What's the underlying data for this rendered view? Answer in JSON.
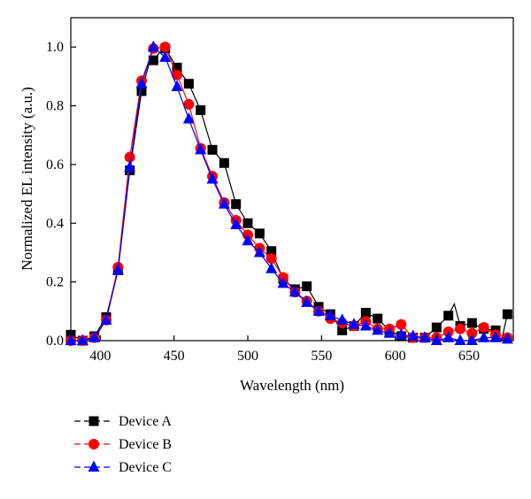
{
  "chart_data": {
    "type": "line",
    "xlabel": "Wavelength (nm)",
    "ylabel": "Normalized EL intensity (a.u.)",
    "xlim": [
      380,
      680
    ],
    "ylim": [
      0,
      1.1
    ],
    "x_ticks": [
      400,
      450,
      500,
      550,
      600,
      650
    ],
    "y_ticks": [
      0.0,
      0.2,
      0.4,
      0.6,
      0.8,
      1.0
    ],
    "x_tick_labels": [
      "400",
      "450",
      "500",
      "550",
      "600",
      "650"
    ],
    "y_tick_labels": [
      "0.0",
      "0.2",
      "0.4",
      "0.6",
      "0.8",
      "1.0"
    ],
    "grid": false,
    "legend_position": "below-left",
    "series": [
      {
        "name": "Device A",
        "color": "#000000",
        "marker": "square",
        "line": [
          [
            380,
            0.02
          ],
          [
            388,
            0.0
          ],
          [
            396,
            0.015
          ],
          [
            404,
            0.08
          ],
          [
            412,
            0.24
          ],
          [
            420,
            0.58
          ],
          [
            428,
            0.85
          ],
          [
            434,
            0.96
          ],
          [
            436,
            0.955
          ],
          [
            440,
            0.98
          ],
          [
            444,
            0.995
          ],
          [
            452,
            0.93
          ],
          [
            460,
            0.875
          ],
          [
            468,
            0.785
          ],
          [
            476,
            0.65
          ],
          [
            484,
            0.605
          ],
          [
            492,
            0.465
          ],
          [
            500,
            0.4
          ],
          [
            508,
            0.365
          ],
          [
            516,
            0.305
          ],
          [
            524,
            0.21
          ],
          [
            532,
            0.175
          ],
          [
            540,
            0.185
          ],
          [
            548,
            0.115
          ],
          [
            556,
            0.09
          ],
          [
            564,
            0.035
          ],
          [
            572,
            0.05
          ],
          [
            580,
            0.095
          ],
          [
            588,
            0.075
          ],
          [
            596,
            0.035
          ],
          [
            604,
            0.015
          ],
          [
            612,
            0.01
          ],
          [
            620,
            0.01
          ],
          [
            628,
            0.045
          ],
          [
            636,
            0.085
          ],
          [
            640,
            0.125
          ],
          [
            644,
            0.05
          ],
          [
            652,
            0.06
          ],
          [
            660,
            0.04
          ],
          [
            668,
            0.035
          ],
          [
            672,
            0.0
          ],
          [
            676,
            0.09
          ]
        ],
        "markers": [
          [
            380,
            0.02
          ],
          [
            388,
            0.0
          ],
          [
            396,
            0.015
          ],
          [
            404,
            0.08
          ],
          [
            412,
            0.24
          ],
          [
            420,
            0.58
          ],
          [
            428,
            0.85
          ],
          [
            436,
            0.955
          ],
          [
            444,
            0.995
          ],
          [
            452,
            0.93
          ],
          [
            460,
            0.875
          ],
          [
            468,
            0.785
          ],
          [
            476,
            0.65
          ],
          [
            484,
            0.605
          ],
          [
            492,
            0.465
          ],
          [
            500,
            0.4
          ],
          [
            508,
            0.365
          ],
          [
            516,
            0.305
          ],
          [
            524,
            0.21
          ],
          [
            532,
            0.175
          ],
          [
            540,
            0.185
          ],
          [
            548,
            0.115
          ],
          [
            556,
            0.09
          ],
          [
            564,
            0.035
          ],
          [
            572,
            0.05
          ],
          [
            580,
            0.095
          ],
          [
            588,
            0.075
          ],
          [
            596,
            0.035
          ],
          [
            604,
            0.015
          ],
          [
            612,
            0.01
          ],
          [
            620,
            0.01
          ],
          [
            628,
            0.045
          ],
          [
            636,
            0.085
          ],
          [
            644,
            0.05
          ],
          [
            652,
            0.06
          ],
          [
            660,
            0.04
          ],
          [
            668,
            0.035
          ],
          [
            676,
            0.09
          ]
        ]
      },
      {
        "name": "Device B",
        "color": "#ff0000",
        "marker": "circle",
        "line": [
          [
            380,
            0.0
          ],
          [
            388,
            0.0
          ],
          [
            396,
            0.01
          ],
          [
            404,
            0.07
          ],
          [
            412,
            0.25
          ],
          [
            420,
            0.625
          ],
          [
            428,
            0.885
          ],
          [
            436,
            0.995
          ],
          [
            444,
            1.0
          ],
          [
            452,
            0.905
          ],
          [
            460,
            0.805
          ],
          [
            468,
            0.655
          ],
          [
            476,
            0.56
          ],
          [
            484,
            0.47
          ],
          [
            492,
            0.41
          ],
          [
            500,
            0.36
          ],
          [
            508,
            0.315
          ],
          [
            516,
            0.28
          ],
          [
            524,
            0.215
          ],
          [
            532,
            0.165
          ],
          [
            540,
            0.135
          ],
          [
            548,
            0.1
          ],
          [
            556,
            0.075
          ],
          [
            564,
            0.06
          ],
          [
            572,
            0.05
          ],
          [
            580,
            0.065
          ],
          [
            588,
            0.04
          ],
          [
            596,
            0.04
          ],
          [
            604,
            0.055
          ],
          [
            612,
            0.01
          ],
          [
            620,
            0.01
          ],
          [
            628,
            0.01
          ],
          [
            636,
            0.03
          ],
          [
            644,
            0.04
          ],
          [
            652,
            0.025
          ],
          [
            660,
            0.045
          ],
          [
            668,
            0.02
          ],
          [
            676,
            0.01
          ]
        ],
        "markers": [
          [
            380,
            0.0
          ],
          [
            388,
            0.0
          ],
          [
            396,
            0.01
          ],
          [
            404,
            0.07
          ],
          [
            412,
            0.25
          ],
          [
            420,
            0.625
          ],
          [
            428,
            0.885
          ],
          [
            436,
            0.995
          ],
          [
            444,
            1.0
          ],
          [
            452,
            0.905
          ],
          [
            460,
            0.805
          ],
          [
            468,
            0.655
          ],
          [
            476,
            0.56
          ],
          [
            484,
            0.47
          ],
          [
            492,
            0.41
          ],
          [
            500,
            0.36
          ],
          [
            508,
            0.315
          ],
          [
            516,
            0.28
          ],
          [
            524,
            0.215
          ],
          [
            532,
            0.165
          ],
          [
            540,
            0.135
          ],
          [
            548,
            0.1
          ],
          [
            556,
            0.075
          ],
          [
            564,
            0.06
          ],
          [
            572,
            0.05
          ],
          [
            580,
            0.065
          ],
          [
            588,
            0.04
          ],
          [
            596,
            0.04
          ],
          [
            604,
            0.055
          ],
          [
            612,
            0.01
          ],
          [
            620,
            0.01
          ],
          [
            628,
            0.01
          ],
          [
            636,
            0.03
          ],
          [
            644,
            0.04
          ],
          [
            652,
            0.025
          ],
          [
            660,
            0.045
          ],
          [
            668,
            0.02
          ],
          [
            676,
            0.01
          ]
        ]
      },
      {
        "name": "Device C",
        "color": "#0000ff",
        "marker": "triangle",
        "line": [
          [
            380,
            0.0
          ],
          [
            388,
            0.0
          ],
          [
            396,
            0.01
          ],
          [
            404,
            0.07
          ],
          [
            412,
            0.24
          ],
          [
            420,
            0.59
          ],
          [
            428,
            0.875
          ],
          [
            436,
            1.0
          ],
          [
            444,
            0.965
          ],
          [
            452,
            0.865
          ],
          [
            460,
            0.755
          ],
          [
            468,
            0.65
          ],
          [
            476,
            0.55
          ],
          [
            484,
            0.465
          ],
          [
            492,
            0.395
          ],
          [
            500,
            0.34
          ],
          [
            508,
            0.3
          ],
          [
            516,
            0.245
          ],
          [
            524,
            0.195
          ],
          [
            532,
            0.165
          ],
          [
            540,
            0.13
          ],
          [
            548,
            0.1
          ],
          [
            556,
            0.085
          ],
          [
            564,
            0.07
          ],
          [
            572,
            0.055
          ],
          [
            580,
            0.05
          ],
          [
            588,
            0.035
          ],
          [
            596,
            0.025
          ],
          [
            604,
            0.02
          ],
          [
            612,
            0.015
          ],
          [
            620,
            0.01
          ],
          [
            628,
            0.0
          ],
          [
            636,
            0.01
          ],
          [
            644,
            0.0
          ],
          [
            652,
            0.0
          ],
          [
            660,
            0.01
          ],
          [
            668,
            0.01
          ],
          [
            676,
            0.005
          ]
        ],
        "markers": [
          [
            380,
            0.0
          ],
          [
            388,
            0.0
          ],
          [
            396,
            0.01
          ],
          [
            404,
            0.07
          ],
          [
            412,
            0.24
          ],
          [
            420,
            0.59
          ],
          [
            428,
            0.875
          ],
          [
            436,
            1.0
          ],
          [
            444,
            0.965
          ],
          [
            452,
            0.865
          ],
          [
            460,
            0.755
          ],
          [
            468,
            0.65
          ],
          [
            476,
            0.55
          ],
          [
            484,
            0.465
          ],
          [
            492,
            0.395
          ],
          [
            500,
            0.34
          ],
          [
            508,
            0.3
          ],
          [
            516,
            0.245
          ],
          [
            524,
            0.195
          ],
          [
            532,
            0.165
          ],
          [
            540,
            0.13
          ],
          [
            548,
            0.1
          ],
          [
            556,
            0.085
          ],
          [
            564,
            0.07
          ],
          [
            572,
            0.055
          ],
          [
            580,
            0.05
          ],
          [
            588,
            0.035
          ],
          [
            596,
            0.025
          ],
          [
            604,
            0.02
          ],
          [
            612,
            0.015
          ],
          [
            620,
            0.01
          ],
          [
            628,
            0.0
          ],
          [
            636,
            0.01
          ],
          [
            644,
            0.0
          ],
          [
            652,
            0.0
          ],
          [
            660,
            0.01
          ],
          [
            668,
            0.01
          ],
          [
            676,
            0.005
          ]
        ]
      }
    ]
  }
}
